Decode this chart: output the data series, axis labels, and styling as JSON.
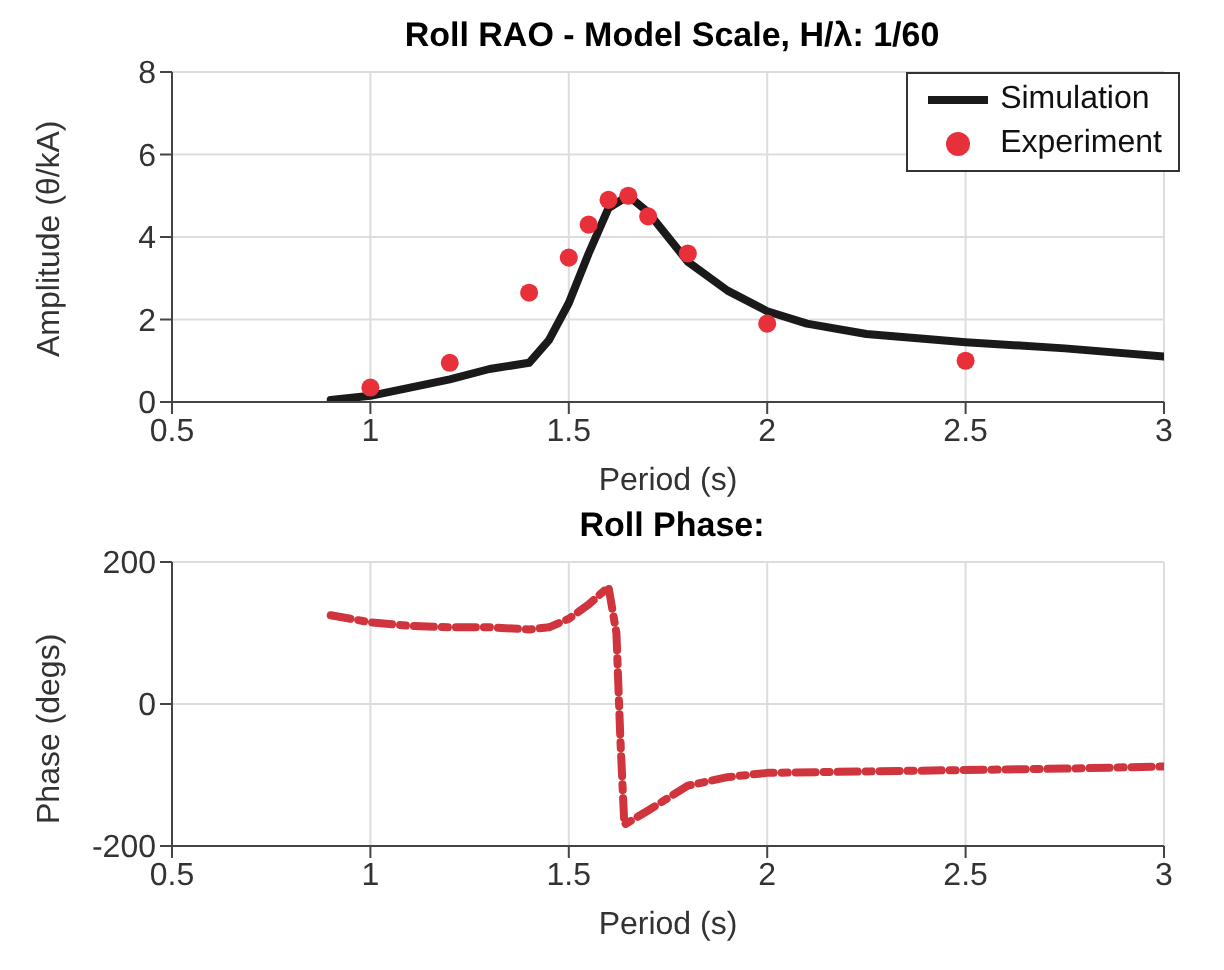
{
  "chart_data": [
    {
      "type": "line",
      "title": "Roll RAO - Model Scale, H/λ: 1/60",
      "xlabel": "Period (s)",
      "ylabel": "Amplitude (θ/kA)",
      "xlim": [
        0.5,
        3
      ],
      "xticks": [
        0.5,
        1,
        1.5,
        2,
        2.5,
        3
      ],
      "ylim": [
        0,
        8
      ],
      "yticks": [
        0,
        2,
        4,
        6,
        8
      ],
      "grid": true,
      "legend": "top right",
      "series": [
        {
          "name": "Simulation",
          "color": "#1a1a1a",
          "marker": "none",
          "line_style": "solid",
          "x": [
            0.9,
            1,
            1.1,
            1.2,
            1.3,
            1.4,
            1.45,
            1.5,
            1.55,
            1.6,
            1.65,
            1.7,
            1.75,
            1.8,
            1.9,
            2,
            2.1,
            2.25,
            2.5,
            2.75,
            3
          ],
          "values": [
            0.05,
            0.15,
            0.35,
            0.55,
            0.8,
            0.95,
            1.5,
            2.4,
            3.6,
            4.7,
            5.0,
            4.6,
            4.0,
            3.4,
            2.7,
            2.2,
            1.9,
            1.65,
            1.45,
            1.3,
            1.1
          ]
        },
        {
          "name": "Experiment",
          "type": "scatter",
          "color": "#e8303a",
          "marker": "circle",
          "x": [
            1,
            1.2,
            1.4,
            1.5,
            1.55,
            1.6,
            1.65,
            1.7,
            1.8,
            2,
            2.5
          ],
          "values": [
            0.35,
            0.95,
            2.65,
            3.5,
            4.3,
            4.9,
            5.0,
            4.5,
            3.6,
            1.9,
            1.0
          ]
        }
      ]
    },
    {
      "type": "line",
      "title": "Roll Phase:",
      "xlabel": "Period (s)",
      "ylabel": "Phase (degs)",
      "xlim": [
        0.5,
        3
      ],
      "xticks": [
        0.5,
        1,
        1.5,
        2,
        2.5,
        3
      ],
      "ylim": [
        -200,
        200
      ],
      "yticks": [
        -200,
        0,
        200
      ],
      "grid": true,
      "series": [
        {
          "color": "#d0343c",
          "marker": "none",
          "line_style": "dashed",
          "x": [
            0.9,
            1,
            1.1,
            1.2,
            1.3,
            1.4,
            1.45,
            1.5,
            1.55,
            1.6,
            1.62,
            1.63,
            1.64,
            1.7,
            1.8,
            1.9,
            2,
            2.25,
            2.5,
            2.75,
            3
          ],
          "values": [
            125,
            115,
            110,
            108,
            108,
            105,
            108,
            120,
            140,
            165,
            100,
            -50,
            -170,
            -150,
            -115,
            -103,
            -97,
            -95,
            -93,
            -91,
            -88
          ]
        }
      ]
    }
  ]
}
